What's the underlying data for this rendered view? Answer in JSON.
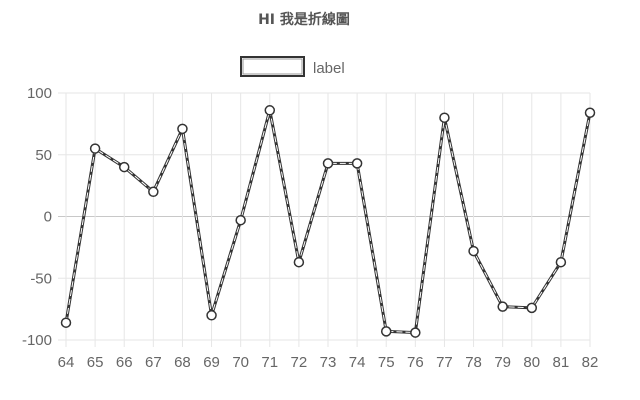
{
  "colors": {
    "line": "#333333",
    "point_fill": "#ffffff",
    "grid": "#e6e6e6",
    "zero_line": "#c8c8c8",
    "text": "#666666"
  },
  "chart_data": {
    "type": "line",
    "title": "HI 我是折線圖",
    "xlabel": "",
    "ylabel": "",
    "categories": [
      "64",
      "65",
      "66",
      "67",
      "68",
      "69",
      "70",
      "71",
      "72",
      "73",
      "74",
      "75",
      "76",
      "77",
      "78",
      "79",
      "80",
      "81",
      "82"
    ],
    "series": [
      {
        "name": "label",
        "values": [
          -86,
          55,
          40,
          20,
          71,
          -80,
          -3,
          86,
          -37,
          43,
          43,
          -93,
          -94,
          80,
          -28,
          -73,
          -74,
          -37,
          84
        ]
      }
    ],
    "ylim": [
      -100,
      100
    ],
    "yticks": [
      100,
      50,
      0,
      -50,
      -100
    ],
    "grid": true,
    "legend": "top-center"
  }
}
